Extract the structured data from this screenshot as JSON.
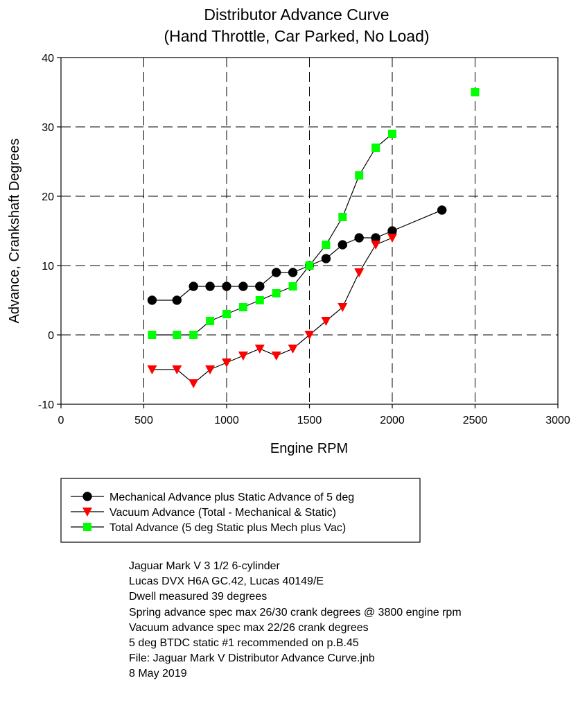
{
  "chart_data": {
    "type": "line",
    "title": "Distributor Advance Curve",
    "subtitle": "(Hand Throttle, Car Parked, No Load)",
    "xlabel": "Engine RPM",
    "ylabel": "Advance, Crankshaft Degrees",
    "xlim": [
      0,
      3000
    ],
    "ylim": [
      -10,
      40
    ],
    "xticks": [
      0,
      500,
      1000,
      1500,
      2000,
      2500,
      3000
    ],
    "yticks": [
      -10,
      0,
      10,
      20,
      30,
      40
    ],
    "grid": "dashed",
    "legend_position": "below",
    "series": [
      {
        "name": "Mechanical Advance plus Static Advance of 5 deg",
        "marker": "circle",
        "color": "#000000",
        "line": true,
        "x": [
          550,
          700,
          800,
          900,
          1000,
          1100,
          1200,
          1300,
          1400,
          1500,
          1600,
          1700,
          1800,
          1900,
          2000,
          2300
        ],
        "y": [
          5,
          5,
          7,
          7,
          7,
          7,
          7,
          9,
          9,
          10,
          11,
          13,
          14,
          14,
          15,
          18
        ]
      },
      {
        "name": "Vacuum Advance (Total - Mechanical & Static)",
        "marker": "triangle-down",
        "color": "#ff0000",
        "line": true,
        "x": [
          550,
          700,
          800,
          900,
          1000,
          1100,
          1200,
          1300,
          1400,
          1500,
          1600,
          1700,
          1800,
          1900,
          2000
        ],
        "y": [
          -5,
          -5,
          -7,
          -5,
          -4,
          -3,
          -2,
          -3,
          -2,
          0,
          2,
          4,
          9,
          13,
          14
        ]
      },
      {
        "name": "Total Advance (5 deg Static plus Mech plus Vac)",
        "marker": "square",
        "color": "#00ff00",
        "line": true,
        "x": [
          550,
          700,
          800,
          900,
          1000,
          1100,
          1200,
          1300,
          1400,
          1500,
          1600,
          1700,
          1800,
          1900,
          2000
        ],
        "y": [
          0,
          0,
          0,
          2,
          3,
          4,
          5,
          6,
          7,
          10,
          13,
          17,
          23,
          27,
          29
        ],
        "extra_points": {
          "x": [
            2500
          ],
          "y": [
            35
          ]
        }
      }
    ]
  },
  "notes": [
    "Jaguar Mark V 3 1/2 6-cylinder",
    "Lucas DVX H6A GC.42, Lucas 40149/E",
    "Dwell measured 39 degrees",
    "Spring advance spec max 26/30 crank degrees @ 3800 engine rpm",
    "Vacuum advance spec max 22/26 crank degrees",
    "5 deg BTDC static #1 recommended on p.B.45",
    "File: Jaguar Mark V Distributor Advance Curve.jnb",
    "8 May 2019"
  ]
}
